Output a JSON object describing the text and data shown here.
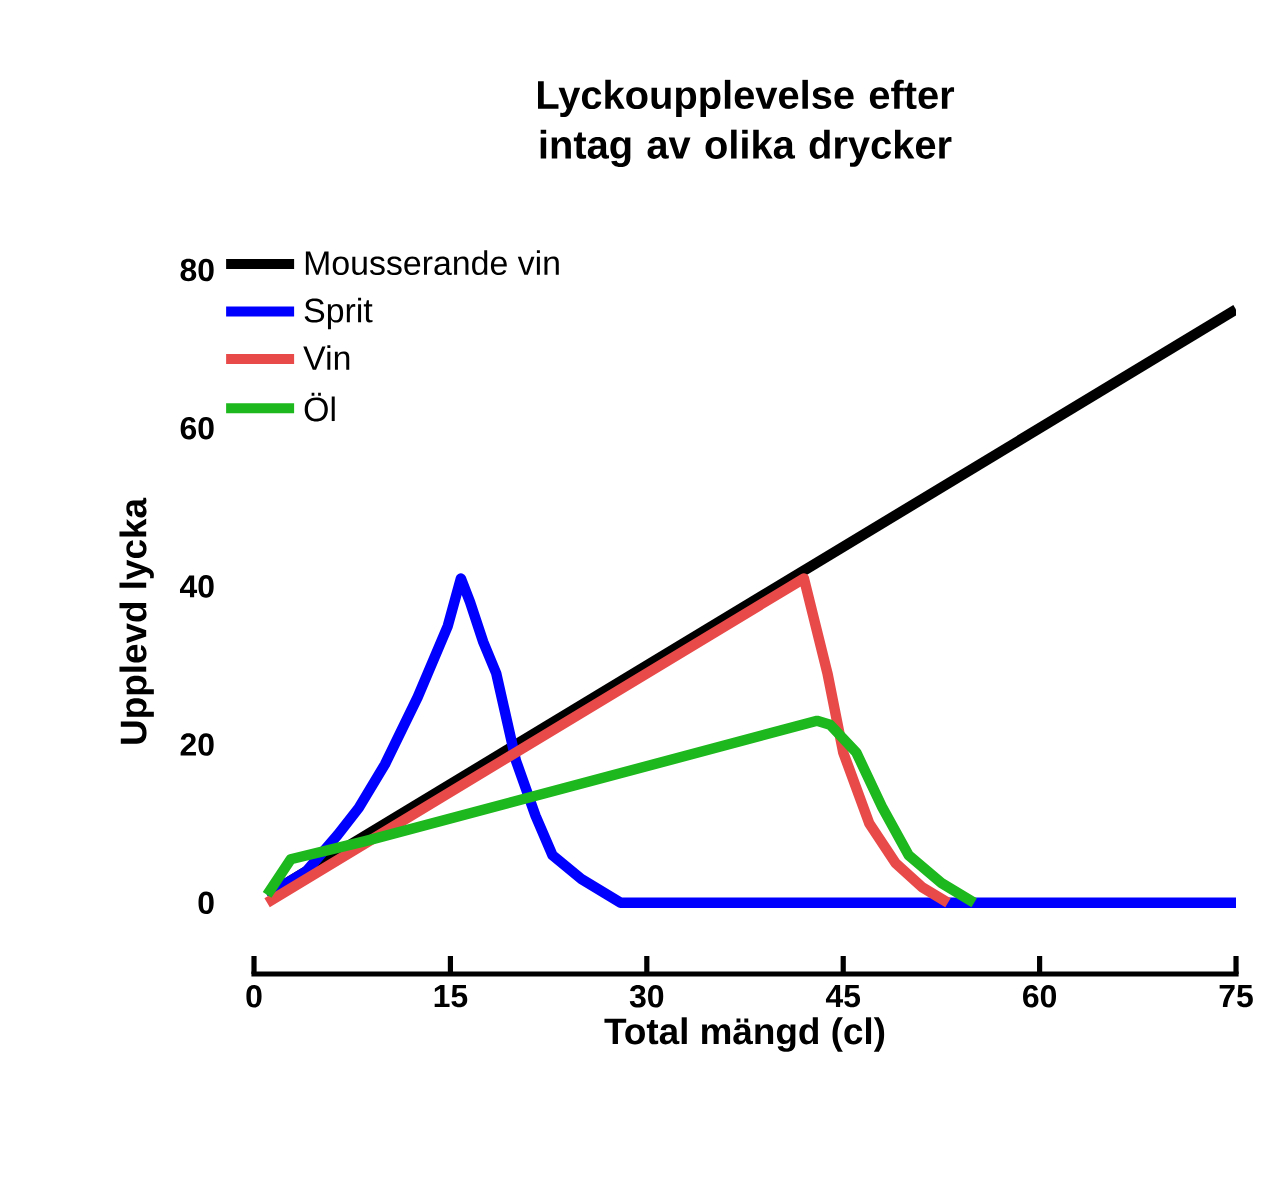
{
  "chart_data": {
    "type": "line",
    "title": "Lyckoupplevelse efter intag av olika drycker",
    "xlabel": "Total mängd (cl)",
    "ylabel": "Upplevd lycka",
    "xlim": [
      0,
      75
    ],
    "xticks": [
      0,
      15,
      30,
      45,
      60,
      75
    ],
    "ylim": [
      -9,
      80
    ],
    "yticks": [
      0,
      20,
      40,
      60,
      80
    ],
    "legend": "top left",
    "series": [
      {
        "name": "Mousserande vin",
        "color": "#000000",
        "x": [
          1,
          75
        ],
        "values": [
          1,
          75
        ]
      },
      {
        "name": "Sprit",
        "color": "#0000ff",
        "x": [
          1,
          4,
          6.4,
          8,
          10,
          12.5,
          14.8,
          15.8,
          16.5,
          17.5,
          18.5,
          20,
          21.5,
          22.8,
          25,
          28,
          75
        ],
        "values": [
          1,
          4,
          8.6,
          12,
          17.5,
          26,
          35,
          41,
          38,
          33,
          29,
          18,
          11,
          6,
          3,
          0,
          0
        ]
      },
      {
        "name": "Vin",
        "color": "#e84a4a",
        "x": [
          1,
          42,
          43.8,
          45,
          47,
          49,
          51,
          53
        ],
        "values": [
          0,
          41,
          29,
          19,
          10,
          5,
          2,
          0
        ]
      },
      {
        "name": "Öl",
        "color": "#1db81d",
        "x": [
          1,
          2.8,
          8.5,
          43,
          44,
          46,
          48,
          50,
          52.5,
          55
        ],
        "values": [
          1,
          5.5,
          7.8,
          23,
          22.5,
          19,
          12,
          6,
          2.5,
          0
        ]
      }
    ]
  }
}
